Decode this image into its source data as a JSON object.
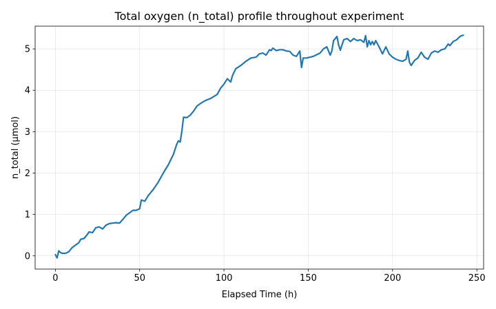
{
  "chart_data": {
    "type": "line",
    "title": "Total oxygen (n_total) profile throughout experiment",
    "xlabel": "Elapsed Time (h)",
    "ylabel": "n_total (µmol)",
    "xlim": [
      -12,
      254
    ],
    "ylim": [
      -0.32,
      5.55
    ],
    "xticks": [
      0,
      50,
      100,
      150,
      200,
      250
    ],
    "yticks": [
      0,
      1,
      2,
      3,
      4,
      5
    ],
    "grid": true,
    "series": [
      {
        "color": "#1f77b4",
        "x": [
          0,
          1,
          2,
          3,
          4,
          6,
          8,
          10,
          12,
          14,
          15,
          17,
          19,
          20,
          22,
          24,
          26,
          28,
          30,
          32,
          34,
          36,
          38,
          40,
          42,
          44,
          46,
          48,
          50,
          51,
          53,
          55,
          58,
          61,
          64,
          67,
          70,
          72,
          73,
          74,
          75,
          76,
          78,
          80,
          82,
          84,
          86,
          88,
          90,
          92,
          94,
          96,
          98,
          100,
          102,
          104,
          105,
          107,
          110,
          113,
          116,
          119,
          121,
          123,
          125,
          127,
          128,
          129,
          131,
          133,
          135,
          137,
          139,
          141,
          143,
          145,
          146,
          147,
          149,
          151,
          153,
          155,
          157,
          159,
          161,
          163,
          164,
          165,
          167,
          168,
          169,
          171,
          173,
          175,
          177,
          179,
          181,
          183,
          184,
          185,
          186,
          187,
          188,
          189,
          190,
          192,
          194,
          196,
          198,
          200,
          202,
          204,
          206,
          208,
          209,
          210,
          211,
          213,
          215,
          217,
          219,
          221,
          223,
          225,
          227,
          229,
          231,
          233,
          234,
          236,
          238,
          240,
          241,
          242
        ],
        "y": [
          0.03,
          -0.05,
          0.12,
          0.08,
          0.06,
          0.06,
          0.1,
          0.2,
          0.26,
          0.32,
          0.4,
          0.42,
          0.52,
          0.58,
          0.56,
          0.68,
          0.7,
          0.65,
          0.74,
          0.78,
          0.79,
          0.8,
          0.79,
          0.88,
          0.98,
          1.04,
          1.1,
          1.1,
          1.14,
          1.35,
          1.32,
          1.45,
          1.6,
          1.78,
          2.0,
          2.2,
          2.45,
          2.7,
          2.78,
          2.75,
          3.0,
          3.35,
          3.34,
          3.4,
          3.5,
          3.62,
          3.68,
          3.73,
          3.77,
          3.8,
          3.85,
          3.9,
          4.05,
          4.15,
          4.28,
          4.2,
          4.35,
          4.52,
          4.6,
          4.7,
          4.78,
          4.8,
          4.88,
          4.9,
          4.85,
          4.98,
          4.96,
          5.02,
          4.96,
          4.98,
          4.98,
          4.95,
          4.94,
          4.85,
          4.82,
          4.95,
          4.55,
          4.78,
          4.78,
          4.8,
          4.82,
          4.86,
          4.9,
          5.0,
          5.05,
          4.85,
          4.95,
          5.2,
          5.3,
          5.1,
          4.97,
          5.22,
          5.25,
          5.18,
          5.25,
          5.2,
          5.22,
          5.16,
          5.32,
          5.05,
          5.2,
          5.1,
          5.18,
          5.1,
          5.2,
          5.05,
          4.88,
          5.05,
          4.88,
          4.8,
          4.75,
          4.72,
          4.7,
          4.75,
          4.95,
          4.68,
          4.6,
          4.72,
          4.78,
          4.92,
          4.8,
          4.75,
          4.9,
          4.95,
          4.92,
          4.98,
          5.0,
          5.12,
          5.08,
          5.18,
          5.22,
          5.3,
          5.32,
          5.33
        ]
      }
    ]
  }
}
